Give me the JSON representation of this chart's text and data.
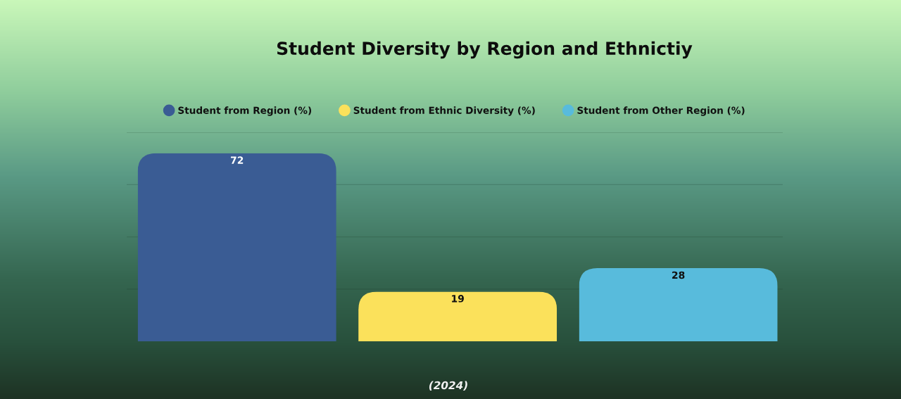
{
  "chart_data": {
    "type": "bar",
    "title": "Student Diversity by Region and Ethnictiy",
    "xlabel": "(2024)",
    "categories": [
      null
    ],
    "series": [
      {
        "name": "Student from Region (%)",
        "color": "#3a5c94",
        "values": [
          72
        ]
      },
      {
        "name": "Student from Ethnic Diversity (%)",
        "color": "#fbe15b",
        "values": [
          19
        ]
      },
      {
        "name": "Student from Other Region (%)",
        "color": "#58bbdc",
        "values": [
          28
        ]
      }
    ],
    "ylim": [
      0,
      80
    ],
    "yticks": [
      {
        "value": 20,
        "label": null
      },
      {
        "value": 40,
        "label": null
      },
      {
        "value": 60,
        "label": null
      },
      {
        "value": 80,
        "label": null
      }
    ],
    "grid": "y",
    "legend": "top",
    "data_labels": true
  }
}
